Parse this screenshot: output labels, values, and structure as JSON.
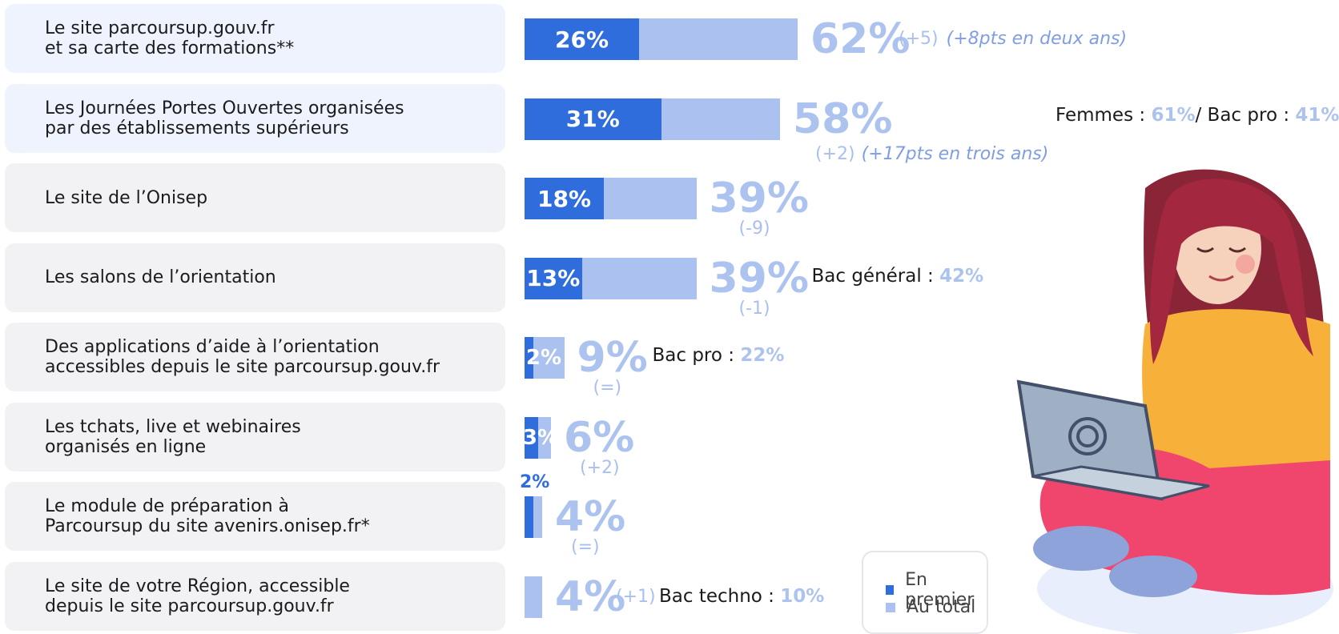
{
  "chart_data": {
    "type": "bar",
    "orientation": "horizontal",
    "stacked_overlay": true,
    "legend": {
      "position": "bottom-right",
      "items": [
        {
          "name": "En premier",
          "color": "#2f6cdc"
        },
        {
          "name": "Au total",
          "color": "#abc2f0"
        }
      ]
    },
    "rows": [
      {
        "label": "Le site parcoursup.gouv.fr\net sa carte des formations**",
        "first": 26,
        "total": 62,
        "first_text": "26%",
        "total_text": "62%",
        "change": "(+5)",
        "change_extra": "(+8pts en deux ans)",
        "note_prefix": "",
        "note_value": "",
        "note_suffix": ""
      },
      {
        "label": "Les Journées Portes Ouvertes organisées\npar des établissements supérieurs",
        "first": 31,
        "total": 58,
        "first_text": "31%",
        "total_text": "58%",
        "change": "(+2)",
        "change_extra": "(+17pts en trois ans)",
        "note_prefix": "Femmes : ",
        "note_value": "61%",
        "note_suffix": "/ Bac pro : ",
        "note_value2": "41%"
      },
      {
        "label": "Le site de l’Onisep",
        "first": 18,
        "total": 39,
        "first_text": "18%",
        "total_text": "39%",
        "change": "(-9)",
        "change_extra": "",
        "note_prefix": "",
        "note_value": ""
      },
      {
        "label": "Les salons de l’orientation",
        "first": 13,
        "total": 39,
        "first_text": "13%",
        "total_text": "39%",
        "change": "(-1)",
        "change_extra": "",
        "note_prefix": "Bac général : ",
        "note_value": "42%"
      },
      {
        "label": "Des applications d’aide à l’orientation\naccessibles depuis le site parcoursup.gouv.fr",
        "first": 2,
        "total": 9,
        "first_text": "2%",
        "total_text": "9%",
        "change": "(=)",
        "change_extra": "",
        "note_prefix": "Bac pro : ",
        "note_value": "22%"
      },
      {
        "label": "Les tchats, live et webinaires\norganisés en ligne",
        "first": 3,
        "total": 6,
        "first_text": "3%",
        "total_text": "6%",
        "change": "(+2)",
        "change_extra": "",
        "note_prefix": "",
        "note_value": ""
      },
      {
        "label": "Le module de préparation à\nParcoursup du site avenirs.onisep.fr*",
        "first": 2,
        "total": 4,
        "first_text": "2%",
        "total_text": "4%",
        "change": "(=)",
        "change_extra": "",
        "note_prefix": "",
        "note_value": ""
      },
      {
        "label": "Le site de votre Région, accessible\ndepuis le site parcoursup.gouv.fr",
        "first": 0,
        "total": 4,
        "first_text": "",
        "total_text": "4%",
        "change": "(+1)",
        "change_extra": "",
        "note_prefix": "Bac techno : ",
        "note_value": "10%"
      }
    ]
  }
}
